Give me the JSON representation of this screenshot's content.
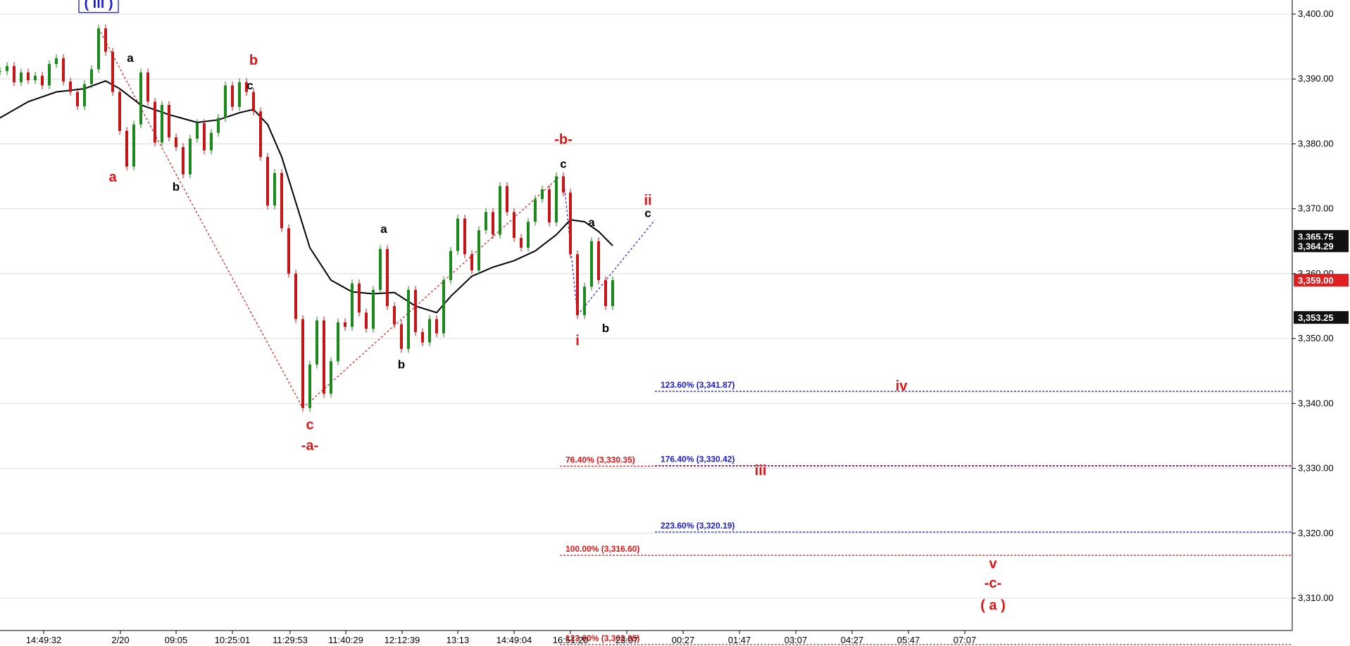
{
  "chart_data": {
    "type": "candlestick",
    "y_axis": {
      "ticks": [
        "3,400.00",
        "3,390.00",
        "3,380.00",
        "3,370.00",
        "3,360.00",
        "3,350.00",
        "3,340.00",
        "3,330.00",
        "3,320.00",
        "3,310.00"
      ],
      "tick_values": [
        3400,
        3390,
        3380,
        3370,
        3360,
        3350,
        3340,
        3330,
        3320,
        3310
      ],
      "ylim": [
        3298.5,
        3402.5
      ]
    },
    "x_axis": {
      "ticks": [
        "14:49:32",
        "2/20",
        "09:05",
        "10:25:01",
        "11:29:53",
        "11:40:29",
        "12:12:39",
        "13:13",
        "14:49:04",
        "16:51:20",
        "23:07",
        "00:27",
        "01:47",
        "03:07",
        "04:27",
        "05:47",
        "07:07"
      ]
    },
    "price_tags": [
      {
        "label": "3,365.75",
        "value": 3365.75,
        "color": "#111111"
      },
      {
        "label": "3,364.29",
        "value": 3364.29,
        "color": "#111111"
      },
      {
        "label": "3,359.00",
        "value": 3359.0,
        "color": "#e02020"
      },
      {
        "label": "3,353.25",
        "value": 3353.25,
        "color": "#111111"
      }
    ],
    "price_path": [
      {
        "x": 0,
        "y": 3391.2
      },
      {
        "x": 1,
        "y": 3392.0
      },
      {
        "x": 2,
        "y": 3389.5
      },
      {
        "x": 3,
        "y": 3391.0
      },
      {
        "x": 4,
        "y": 3389.8
      },
      {
        "x": 5,
        "y": 3390.5
      },
      {
        "x": 6,
        "y": 3389.0
      },
      {
        "x": 7,
        "y": 3392.3
      },
      {
        "x": 8,
        "y": 3393.2
      },
      {
        "x": 9,
        "y": 3389.6
      },
      {
        "x": 10,
        "y": 3388.0
      },
      {
        "x": 11,
        "y": 3385.8
      },
      {
        "x": 12,
        "y": 3389.2
      },
      {
        "x": 13,
        "y": 3391.5
      },
      {
        "x": 14,
        "y": 3397.8
      },
      {
        "x": 15,
        "y": 3394.2
      },
      {
        "x": 16,
        "y": 3388.0
      },
      {
        "x": 17,
        "y": 3382.0
      },
      {
        "x": 18,
        "y": 3376.5
      },
      {
        "x": 19,
        "y": 3383.0
      },
      {
        "x": 20,
        "y": 3391.0
      },
      {
        "x": 21,
        "y": 3386.5
      },
      {
        "x": 22,
        "y": 3380.2
      },
      {
        "x": 23,
        "y": 3386.0
      },
      {
        "x": 24,
        "y": 3381.0
      },
      {
        "x": 25,
        "y": 3379.5
      },
      {
        "x": 26,
        "y": 3375.3
      },
      {
        "x": 27,
        "y": 3380.8
      },
      {
        "x": 28,
        "y": 3383.2
      },
      {
        "x": 29,
        "y": 3379.0
      },
      {
        "x": 30,
        "y": 3381.7
      },
      {
        "x": 31,
        "y": 3384.0
      },
      {
        "x": 32,
        "y": 3389.0
      },
      {
        "x": 33,
        "y": 3385.7
      },
      {
        "x": 34,
        "y": 3389.5
      },
      {
        "x": 35,
        "y": 3388.0
      },
      {
        "x": 36,
        "y": 3385.0
      },
      {
        "x": 37,
        "y": 3378.0
      },
      {
        "x": 38,
        "y": 3370.5
      },
      {
        "x": 39,
        "y": 3375.5
      },
      {
        "x": 40,
        "y": 3367.0
      },
      {
        "x": 41,
        "y": 3360.0
      },
      {
        "x": 42,
        "y": 3353.0
      },
      {
        "x": 43,
        "y": 3339.3
      },
      {
        "x": 44,
        "y": 3346.0
      },
      {
        "x": 45,
        "y": 3352.8
      },
      {
        "x": 46,
        "y": 3341.5
      },
      {
        "x": 47,
        "y": 3346.5
      },
      {
        "x": 48,
        "y": 3352.5
      },
      {
        "x": 49,
        "y": 3351.8
      },
      {
        "x": 50,
        "y": 3358.5
      },
      {
        "x": 51,
        "y": 3354.0
      },
      {
        "x": 52,
        "y": 3351.5
      },
      {
        "x": 53,
        "y": 3357.5
      },
      {
        "x": 54,
        "y": 3363.8
      },
      {
        "x": 55,
        "y": 3355.0
      },
      {
        "x": 56,
        "y": 3352.2
      },
      {
        "x": 57,
        "y": 3348.4
      },
      {
        "x": 58,
        "y": 3357.5
      },
      {
        "x": 59,
        "y": 3351.0
      },
      {
        "x": 60,
        "y": 3349.4
      },
      {
        "x": 61,
        "y": 3353.0
      },
      {
        "x": 62,
        "y": 3350.8
      },
      {
        "x": 63,
        "y": 3359.0
      },
      {
        "x": 64,
        "y": 3363.5
      },
      {
        "x": 65,
        "y": 3368.5
      },
      {
        "x": 66,
        "y": 3363.0
      },
      {
        "x": 67,
        "y": 3360.5
      },
      {
        "x": 68,
        "y": 3366.7
      },
      {
        "x": 69,
        "y": 3369.5
      },
      {
        "x": 70,
        "y": 3366.0
      },
      {
        "x": 71,
        "y": 3373.5
      },
      {
        "x": 72,
        "y": 3369.5
      },
      {
        "x": 73,
        "y": 3365.5
      },
      {
        "x": 74,
        "y": 3364.0
      },
      {
        "x": 75,
        "y": 3368.0
      },
      {
        "x": 76,
        "y": 3371.5
      },
      {
        "x": 77,
        "y": 3373.0
      },
      {
        "x": 78,
        "y": 3367.9
      },
      {
        "x": 79,
        "y": 3375.0
      },
      {
        "x": 80,
        "y": 3372.5
      },
      {
        "x": 81,
        "y": 3363.0
      },
      {
        "x": 82,
        "y": 3353.6
      },
      {
        "x": 83,
        "y": 3358.0
      },
      {
        "x": 84,
        "y": 3365.0
      },
      {
        "x": 85,
        "y": 3359.0
      },
      {
        "x": 86,
        "y": 3355.0
      },
      {
        "x": 87,
        "y": 3359.0
      }
    ],
    "moving_average": [
      {
        "x": 0,
        "y": 3384.0
      },
      {
        "x": 4,
        "y": 3386.5
      },
      {
        "x": 8,
        "y": 3388.0
      },
      {
        "x": 12,
        "y": 3388.5
      },
      {
        "x": 15,
        "y": 3389.7
      },
      {
        "x": 17,
        "y": 3388.5
      },
      {
        "x": 20,
        "y": 3386.0
      },
      {
        "x": 24,
        "y": 3384.5
      },
      {
        "x": 28,
        "y": 3383.3
      },
      {
        "x": 31,
        "y": 3383.7
      },
      {
        "x": 34,
        "y": 3384.8
      },
      {
        "x": 36,
        "y": 3385.3
      },
      {
        "x": 38,
        "y": 3383.0
      },
      {
        "x": 40,
        "y": 3378.0
      },
      {
        "x": 42,
        "y": 3371.0
      },
      {
        "x": 44,
        "y": 3364.0
      },
      {
        "x": 47,
        "y": 3359.0
      },
      {
        "x": 50,
        "y": 3357.2
      },
      {
        "x": 53,
        "y": 3356.9
      },
      {
        "x": 56,
        "y": 3357.1
      },
      {
        "x": 59,
        "y": 3355.0
      },
      {
        "x": 62,
        "y": 3354.0
      },
      {
        "x": 64,
        "y": 3356.5
      },
      {
        "x": 67,
        "y": 3359.6
      },
      {
        "x": 70,
        "y": 3361.0
      },
      {
        "x": 73,
        "y": 3362.0
      },
      {
        "x": 76,
        "y": 3363.5
      },
      {
        "x": 79,
        "y": 3366.0
      },
      {
        "x": 81,
        "y": 3368.3
      },
      {
        "x": 83,
        "y": 3368.0
      },
      {
        "x": 85,
        "y": 3366.5
      },
      {
        "x": 87,
        "y": 3364.3
      }
    ],
    "wave_labels": [
      {
        "text": "( iii )",
        "color": "blue",
        "x": 14,
        "y": 3401.0,
        "boxed": true
      },
      {
        "text": "a",
        "color": "red",
        "x": 16,
        "y": 3374.2
      },
      {
        "text": "b",
        "color": "red",
        "x": 36,
        "y": 3392.2
      },
      {
        "text": "c",
        "color": "red",
        "x": 44,
        "y": 3336.0
      },
      {
        "text": "-a-",
        "color": "red",
        "x": 44,
        "y": 3332.8
      },
      {
        "text": "-b-",
        "color": "red",
        "x": 80,
        "y": 3380.0
      },
      {
        "text": "ii",
        "color": "red",
        "x": 92,
        "y": 3370.6
      },
      {
        "text": "i",
        "color": "red",
        "x": 82,
        "y": 3349.0
      },
      {
        "text": "iv",
        "color": "red",
        "x": 128,
        "y": 3342.0
      },
      {
        "text": "iii",
        "color": "red",
        "x": 108,
        "y": 3329.0
      },
      {
        "text": "v",
        "color": "red",
        "x": 141,
        "y": 3314.6
      },
      {
        "text": "-c-",
        "color": "red",
        "x": 141,
        "y": 3311.6
      },
      {
        "text": "( a )",
        "color": "red",
        "x": 141,
        "y": 3308.2
      },
      {
        "text": "a",
        "color": "black",
        "x": 18.5,
        "y": 3392.6
      },
      {
        "text": "b",
        "color": "black",
        "x": 25,
        "y": 3372.8
      },
      {
        "text": "c",
        "color": "black",
        "x": 35.5,
        "y": 3388.4
      },
      {
        "text": "a",
        "color": "black",
        "x": 54.5,
        "y": 3366.3
      },
      {
        "text": "b",
        "color": "black",
        "x": 57,
        "y": 3345.4
      },
      {
        "text": "c",
        "color": "black",
        "x": 80,
        "y": 3376.3
      },
      {
        "text": "a",
        "color": "black",
        "x": 84,
        "y": 3367.3
      },
      {
        "text": "b",
        "color": "black",
        "x": 86,
        "y": 3351.0
      },
      {
        "text": "c",
        "color": "black",
        "x": 92,
        "y": 3368.7
      }
    ],
    "fib_levels": [
      {
        "label": "123.60% (3,341.87)",
        "value": 3341.87,
        "color": "blue",
        "from_x": 93
      },
      {
        "label": "76.40% (3,330.35)",
        "value": 3330.35,
        "color": "red",
        "from_x": 79.5
      },
      {
        "label": "176.40% (3,330.42)",
        "value": 3330.42,
        "color": "blue",
        "from_x": 93
      },
      {
        "label": "223.60% (3,320.19)",
        "value": 3320.19,
        "color": "blue",
        "from_x": 93
      },
      {
        "label": "100.00% (3,316.60)",
        "value": 3316.6,
        "color": "red",
        "from_x": 79.5
      },
      {
        "label": "123.60% (3,302.85)",
        "value": 3302.85,
        "color": "red",
        "from_x": 79.5
      }
    ],
    "trendlines": [
      {
        "color": "red",
        "points": [
          {
            "x": 14,
            "y": 3397.8
          },
          {
            "x": 25,
            "y": 3375.3
          },
          {
            "x": 43,
            "y": 3339.3
          },
          {
            "x": 79.5,
            "y": 3375.0
          }
        ]
      },
      {
        "color": "blue",
        "points": [
          {
            "x": 80,
            "y": 3375.0
          },
          {
            "x": 82,
            "y": 3353.6
          }
        ]
      },
      {
        "color": "blue",
        "points": [
          {
            "x": 82,
            "y": 3353.6
          },
          {
            "x": 93,
            "y": 3368.3
          }
        ]
      }
    ]
  }
}
